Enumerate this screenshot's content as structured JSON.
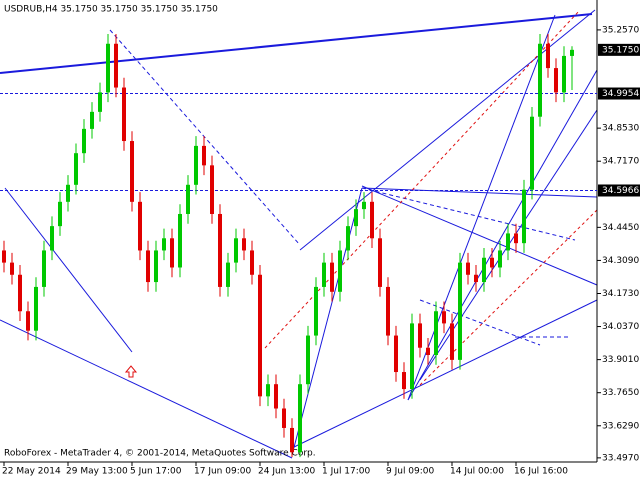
{
  "chart_data": {
    "type": "candlestick",
    "title": "USDRUB,H4 35.1750 35.1750 35.1750 35.1750",
    "footer": "RoboForex - MetaTrader 4, © 2001-2014, MetaQuotes Software Corp.",
    "up_color": "#00c800",
    "down_color": "#e00000",
    "ylim": [
      33.48,
      35.38
    ],
    "yticks": [
      {
        "value": 35.257,
        "label": "35.2570"
      },
      {
        "value": 34.853,
        "label": "34.8530"
      },
      {
        "value": 34.717,
        "label": "34.7170"
      },
      {
        "value": 34.445,
        "label": "34.4450"
      },
      {
        "value": 34.309,
        "label": "34.3090"
      },
      {
        "value": 34.173,
        "label": "34.1730"
      },
      {
        "value": 34.037,
        "label": "34.0370"
      },
      {
        "value": 33.901,
        "label": "33.9010"
      },
      {
        "value": 33.765,
        "label": "33.7650"
      },
      {
        "value": 33.629,
        "label": "33.6290"
      },
      {
        "value": 33.497,
        "label": "33.4970"
      }
    ],
    "levels": [
      34.9954,
      34.5966
    ],
    "last_price": {
      "value": 35.175,
      "label": "35.1750"
    },
    "categories": [
      "22 May 2014",
      null,
      null,
      null,
      null,
      null,
      null,
      null,
      "29 May 13:00",
      null,
      null,
      null,
      null,
      null,
      null,
      null,
      "5 Jun 17:00",
      null,
      null,
      null,
      null,
      null,
      null,
      null,
      "17 Jun 09:00",
      null,
      null,
      null,
      null,
      null,
      null,
      null,
      "24 Jun 13:00",
      null,
      null,
      null,
      null,
      null,
      null,
      null,
      "1 Jul 17:00",
      null,
      null,
      null,
      null,
      null,
      null,
      null,
      "9 Jul 09:00",
      null,
      null,
      null,
      null,
      null,
      null,
      null,
      "14 Jul 00:00",
      null,
      null,
      null,
      null,
      null,
      null,
      null,
      "16 Jul 16:00",
      null,
      null,
      null,
      null,
      null,
      null,
      null
    ],
    "ohlc": [
      [
        34.35,
        34.39,
        34.26,
        34.3
      ],
      [
        34.3,
        34.34,
        34.21,
        34.25
      ],
      [
        34.25,
        34.29,
        34.06,
        34.1
      ],
      [
        34.1,
        34.14,
        33.98,
        34.02
      ],
      [
        34.02,
        34.24,
        33.98,
        34.2
      ],
      [
        34.2,
        34.39,
        34.16,
        34.35
      ],
      [
        34.35,
        34.49,
        34.31,
        34.45
      ],
      [
        34.45,
        34.59,
        34.41,
        34.55
      ],
      [
        34.55,
        34.66,
        34.51,
        34.62
      ],
      [
        34.62,
        34.79,
        34.58,
        34.75
      ],
      [
        34.75,
        34.89,
        34.71,
        34.85
      ],
      [
        34.85,
        34.96,
        34.81,
        34.92
      ],
      [
        34.92,
        35.04,
        34.88,
        35.0
      ],
      [
        35.0,
        35.24,
        34.96,
        35.2
      ],
      [
        35.2,
        35.24,
        34.98,
        35.02
      ],
      [
        35.02,
        35.06,
        34.76,
        34.8
      ],
      [
        34.8,
        34.84,
        34.51,
        34.55
      ],
      [
        34.55,
        34.59,
        34.31,
        34.35
      ],
      [
        34.35,
        34.39,
        34.18,
        34.22
      ],
      [
        34.22,
        34.39,
        34.18,
        34.35
      ],
      [
        34.35,
        34.44,
        34.31,
        34.4
      ],
      [
        34.4,
        34.44,
        34.24,
        34.28
      ],
      [
        34.28,
        34.54,
        34.24,
        34.5
      ],
      [
        34.5,
        34.66,
        34.46,
        34.62
      ],
      [
        34.62,
        34.82,
        34.58,
        34.78
      ],
      [
        34.78,
        34.82,
        34.66,
        34.7
      ],
      [
        34.7,
        34.74,
        34.46,
        34.5
      ],
      [
        34.5,
        34.54,
        34.16,
        34.2
      ],
      [
        34.2,
        34.34,
        34.16,
        34.3
      ],
      [
        34.3,
        34.44,
        34.26,
        34.4
      ],
      [
        34.4,
        34.44,
        34.31,
        34.35
      ],
      [
        34.35,
        34.39,
        34.21,
        34.25
      ],
      [
        34.25,
        34.29,
        33.71,
        33.75
      ],
      [
        33.75,
        33.84,
        33.71,
        33.8
      ],
      [
        33.8,
        33.84,
        33.66,
        33.7
      ],
      [
        33.7,
        33.74,
        33.58,
        33.62
      ],
      [
        33.62,
        33.66,
        33.5,
        33.52
      ],
      [
        33.52,
        33.84,
        33.5,
        33.8
      ],
      [
        33.8,
        34.04,
        33.76,
        34.0
      ],
      [
        34.0,
        34.24,
        33.96,
        34.2
      ],
      [
        34.2,
        34.34,
        34.16,
        34.3
      ],
      [
        34.3,
        34.34,
        34.14,
        34.18
      ],
      [
        34.18,
        34.39,
        34.14,
        34.35
      ],
      [
        34.35,
        34.49,
        34.31,
        34.45
      ],
      [
        34.45,
        34.56,
        34.41,
        34.52
      ],
      [
        34.52,
        34.59,
        34.48,
        34.55
      ],
      [
        34.55,
        34.59,
        34.36,
        34.4
      ],
      [
        34.4,
        34.44,
        34.16,
        34.2
      ],
      [
        34.2,
        34.24,
        33.96,
        34.0
      ],
      [
        34.0,
        34.04,
        33.81,
        33.85
      ],
      [
        33.85,
        33.89,
        33.74,
        33.78
      ],
      [
        33.78,
        34.09,
        33.74,
        34.05
      ],
      [
        34.05,
        34.09,
        33.91,
        33.95
      ],
      [
        33.95,
        33.99,
        33.88,
        33.92
      ],
      [
        33.92,
        34.14,
        33.88,
        34.1
      ],
      [
        34.1,
        34.14,
        34.01,
        34.05
      ],
      [
        34.05,
        34.09,
        33.86,
        33.9
      ],
      [
        33.9,
        34.34,
        33.86,
        34.3
      ],
      [
        34.3,
        34.34,
        34.21,
        34.25
      ],
      [
        34.25,
        34.29,
        34.18,
        34.22
      ],
      [
        34.22,
        34.36,
        34.18,
        34.32
      ],
      [
        34.32,
        34.36,
        34.24,
        34.28
      ],
      [
        34.28,
        34.39,
        34.24,
        34.35
      ],
      [
        34.35,
        34.46,
        34.31,
        34.42
      ],
      [
        34.42,
        34.46,
        34.34,
        34.38
      ],
      [
        34.38,
        34.64,
        34.34,
        34.6
      ],
      [
        34.6,
        34.94,
        34.56,
        34.9
      ],
      [
        34.9,
        35.24,
        34.86,
        35.2
      ],
      [
        35.2,
        35.24,
        35.06,
        35.1
      ],
      [
        35.1,
        35.14,
        34.96,
        35.0
      ],
      [
        35.0,
        35.19,
        34.96,
        35.15
      ],
      [
        35.15,
        35.19,
        35.01,
        35.175
      ]
    ]
  }
}
